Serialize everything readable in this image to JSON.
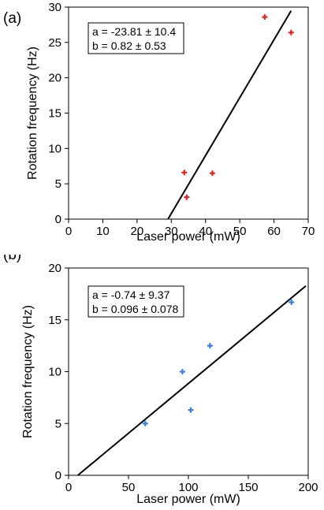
{
  "chart_data": [
    {
      "type": "scatter",
      "panel_label": "(a)",
      "xlabel": "Laser power (mW)",
      "ylabel": "Rotation frequency (Hz)",
      "xlim": [
        0,
        70
      ],
      "ylim": [
        0,
        30
      ],
      "xticks": [
        0,
        10,
        20,
        30,
        40,
        50,
        60,
        70
      ],
      "yticks": [
        0,
        5,
        10,
        15,
        20,
        25,
        30
      ],
      "grid": false,
      "marker_color": "#e8211b",
      "line_color": "#000000",
      "points": [
        {
          "x": 33.8,
          "y": 6.6
        },
        {
          "x": 34.5,
          "y": 3.1
        },
        {
          "x": 42.0,
          "y": 6.5
        },
        {
          "x": 57.3,
          "y": 28.6
        },
        {
          "x": 65.0,
          "y": 26.4
        }
      ],
      "fit": {
        "intercept": -23.81,
        "slope": 0.82,
        "x_range": [
          29.03,
          65.0
        ]
      },
      "fit_text": [
        "a = -23.81 ± 10.4",
        "b = 0.82 ± 0.53"
      ]
    },
    {
      "type": "scatter",
      "panel_label": "(b)",
      "xlabel": "Laser power (mW)",
      "ylabel": "Rotation frequency (Hz)",
      "xlim": [
        0,
        200
      ],
      "ylim": [
        0,
        20
      ],
      "xticks": [
        0,
        50,
        100,
        150,
        200
      ],
      "yticks": [
        0,
        5,
        10,
        15,
        20
      ],
      "grid": false,
      "marker_color": "#3a7de0",
      "line_color": "#000000",
      "points": [
        {
          "x": 64,
          "y": 5.0
        },
        {
          "x": 95,
          "y": 10.0
        },
        {
          "x": 102,
          "y": 6.3
        },
        {
          "x": 118,
          "y": 12.5
        },
        {
          "x": 186,
          "y": 16.7
        }
      ],
      "fit": {
        "intercept": -0.74,
        "slope": 0.096,
        "x_range": [
          7.7,
          198
        ]
      },
      "fit_text": [
        "a = -0.74 ± 9.37",
        "b = 0.096 ± 0.078"
      ]
    }
  ]
}
